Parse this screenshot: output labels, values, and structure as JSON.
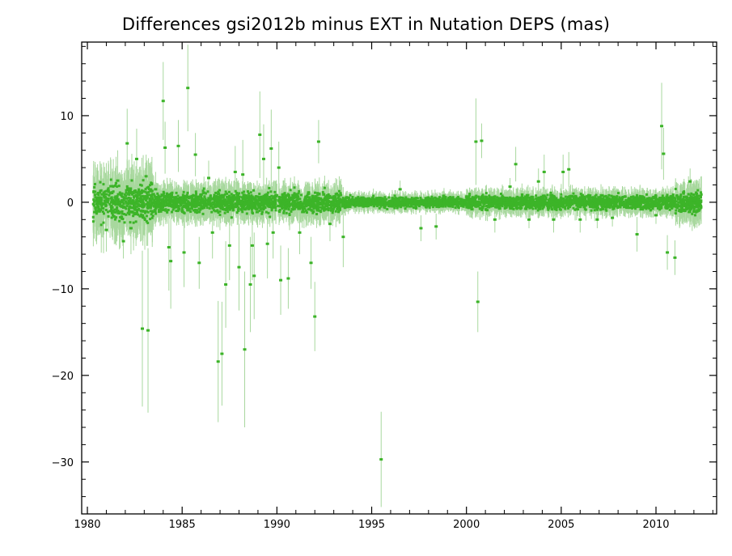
{
  "chart_data": {
    "type": "scatter",
    "title": "Differences gsi2012b minus EXT in Nutation DEPS (mas)",
    "xlabel": "",
    "ylabel": "",
    "xlim": [
      1979.7,
      2013.2
    ],
    "ylim": [
      -36,
      18.5
    ],
    "xticks": [
      1980,
      1985,
      1990,
      1995,
      2000,
      2005,
      2010
    ],
    "xtick_labels": [
      "1980",
      "1985",
      "1990",
      "1995",
      "2000",
      "2005",
      "2010"
    ],
    "yticks": [
      -30,
      -20,
      -10,
      0,
      10
    ],
    "ytick_labels": [
      "−30",
      "−20",
      "−10",
      "0",
      "10"
    ],
    "grid": false,
    "legend": "none",
    "colors": {
      "point": "#3cb428",
      "errorbar": "#a8d89e",
      "axis": "#000000"
    },
    "highlighted_points": [
      {
        "x": 1980.7,
        "y": 0.3,
        "err": 1.5
      },
      {
        "x": 1981.0,
        "y": -3.2,
        "err": 2.5
      },
      {
        "x": 1981.3,
        "y": -1.0,
        "err": 3.0
      },
      {
        "x": 1981.6,
        "y": 2.5,
        "err": 3.5
      },
      {
        "x": 1981.9,
        "y": -4.5,
        "err": 2.0
      },
      {
        "x": 1982.1,
        "y": 6.8,
        "err": 4.0
      },
      {
        "x": 1982.3,
        "y": -3.0,
        "err": 3.0
      },
      {
        "x": 1982.6,
        "y": 5.0,
        "err": 3.5
      },
      {
        "x": 1982.9,
        "y": -14.6,
        "err": 9.0
      },
      {
        "x": 1983.1,
        "y": 3.0,
        "err": 2.5
      },
      {
        "x": 1983.2,
        "y": -14.8,
        "err": 9.5
      },
      {
        "x": 1983.6,
        "y": 1.5,
        "err": 2.0
      },
      {
        "x": 1984.0,
        "y": 11.7,
        "err": 4.5
      },
      {
        "x": 1984.1,
        "y": 6.3,
        "err": 3.0
      },
      {
        "x": 1984.3,
        "y": -5.2,
        "err": 5.0
      },
      {
        "x": 1984.4,
        "y": -6.8,
        "err": 5.5
      },
      {
        "x": 1984.8,
        "y": 6.5,
        "err": 3.0
      },
      {
        "x": 1985.1,
        "y": -5.8,
        "err": 4.0
      },
      {
        "x": 1985.3,
        "y": 13.2,
        "err": 5.0
      },
      {
        "x": 1985.7,
        "y": 5.5,
        "err": 2.5
      },
      {
        "x": 1985.9,
        "y": -7.0,
        "err": 3.0
      },
      {
        "x": 1986.4,
        "y": 2.8,
        "err": 2.0
      },
      {
        "x": 1986.6,
        "y": -3.5,
        "err": 3.0
      },
      {
        "x": 1986.9,
        "y": -18.4,
        "err": 7.0
      },
      {
        "x": 1987.1,
        "y": -17.5,
        "err": 6.0
      },
      {
        "x": 1987.3,
        "y": -9.5,
        "err": 5.0
      },
      {
        "x": 1987.5,
        "y": -5.0,
        "err": 4.0
      },
      {
        "x": 1987.8,
        "y": 3.5,
        "err": 3.0
      },
      {
        "x": 1988.0,
        "y": -7.5,
        "err": 5.0
      },
      {
        "x": 1988.2,
        "y": 3.2,
        "err": 4.0
      },
      {
        "x": 1988.3,
        "y": -17.0,
        "err": 9.0
      },
      {
        "x": 1988.6,
        "y": -9.5,
        "err": 5.5
      },
      {
        "x": 1988.7,
        "y": -5.0,
        "err": 4.0
      },
      {
        "x": 1988.8,
        "y": -8.5,
        "err": 5.0
      },
      {
        "x": 1989.1,
        "y": 7.8,
        "err": 5.0
      },
      {
        "x": 1989.3,
        "y": 5.0,
        "err": 4.0
      },
      {
        "x": 1989.5,
        "y": -4.8,
        "err": 4.0
      },
      {
        "x": 1989.7,
        "y": 6.2,
        "err": 4.5
      },
      {
        "x": 1989.8,
        "y": -3.5,
        "err": 3.0
      },
      {
        "x": 1990.1,
        "y": 4.0,
        "err": 3.0
      },
      {
        "x": 1990.2,
        "y": -9.0,
        "err": 4.0
      },
      {
        "x": 1990.6,
        "y": -8.8,
        "err": 3.5
      },
      {
        "x": 1991.2,
        "y": -3.5,
        "err": 2.5
      },
      {
        "x": 1991.8,
        "y": -7.0,
        "err": 3.0
      },
      {
        "x": 1992.0,
        "y": -13.2,
        "err": 4.0
      },
      {
        "x": 1992.2,
        "y": 7.0,
        "err": 2.5
      },
      {
        "x": 1992.8,
        "y": -2.5,
        "err": 2.0
      },
      {
        "x": 1993.5,
        "y": -4.0,
        "err": 3.5
      },
      {
        "x": 1995.5,
        "y": -29.7,
        "err": 5.5
      },
      {
        "x": 1996.5,
        "y": 1.5,
        "err": 1.0
      },
      {
        "x": 1997.6,
        "y": -3.0,
        "err": 1.5
      },
      {
        "x": 1998.4,
        "y": -2.8,
        "err": 1.5
      },
      {
        "x": 2000.5,
        "y": 7.0,
        "err": 5.0
      },
      {
        "x": 2000.6,
        "y": -11.5,
        "err": 3.5
      },
      {
        "x": 2000.8,
        "y": 7.1,
        "err": 2.0
      },
      {
        "x": 2001.5,
        "y": -2.0,
        "err": 1.5
      },
      {
        "x": 2002.3,
        "y": 1.8,
        "err": 1.0
      },
      {
        "x": 2002.6,
        "y": 4.4,
        "err": 2.0
      },
      {
        "x": 2003.3,
        "y": -2.0,
        "err": 1.0
      },
      {
        "x": 2003.8,
        "y": 2.4,
        "err": 1.5
      },
      {
        "x": 2004.1,
        "y": 3.5,
        "err": 2.0
      },
      {
        "x": 2004.6,
        "y": -2.0,
        "err": 1.5
      },
      {
        "x": 2005.1,
        "y": 3.5,
        "err": 2.0
      },
      {
        "x": 2005.4,
        "y": 3.8,
        "err": 2.0
      },
      {
        "x": 2006.0,
        "y": -2.0,
        "err": 1.5
      },
      {
        "x": 2006.9,
        "y": -2.0,
        "err": 1.0
      },
      {
        "x": 2007.7,
        "y": -1.8,
        "err": 1.0
      },
      {
        "x": 2009.0,
        "y": -3.7,
        "err": 2.0
      },
      {
        "x": 2010.0,
        "y": -1.5,
        "err": 1.0
      },
      {
        "x": 2010.3,
        "y": 8.8,
        "err": 5.0
      },
      {
        "x": 2010.4,
        "y": 5.6,
        "err": 3.0
      },
      {
        "x": 2010.6,
        "y": -5.8,
        "err": 2.0
      },
      {
        "x": 2011.0,
        "y": -6.4,
        "err": 2.0
      },
      {
        "x": 2011.8,
        "y": 2.4,
        "err": 1.5
      },
      {
        "x": 2012.1,
        "y": 0.6,
        "err": 1.5
      }
    ],
    "noise_band": [
      {
        "from": 1980.3,
        "to": 1983.5,
        "spread": 1.5
      },
      {
        "from": 1983.5,
        "to": 1993.5,
        "spread": 0.8
      },
      {
        "from": 1993.5,
        "to": 2000.0,
        "spread": 0.4
      },
      {
        "from": 2000.0,
        "to": 2011.0,
        "spread": 0.55
      },
      {
        "from": 2011.0,
        "to": 2012.4,
        "spread": 0.9
      }
    ]
  }
}
